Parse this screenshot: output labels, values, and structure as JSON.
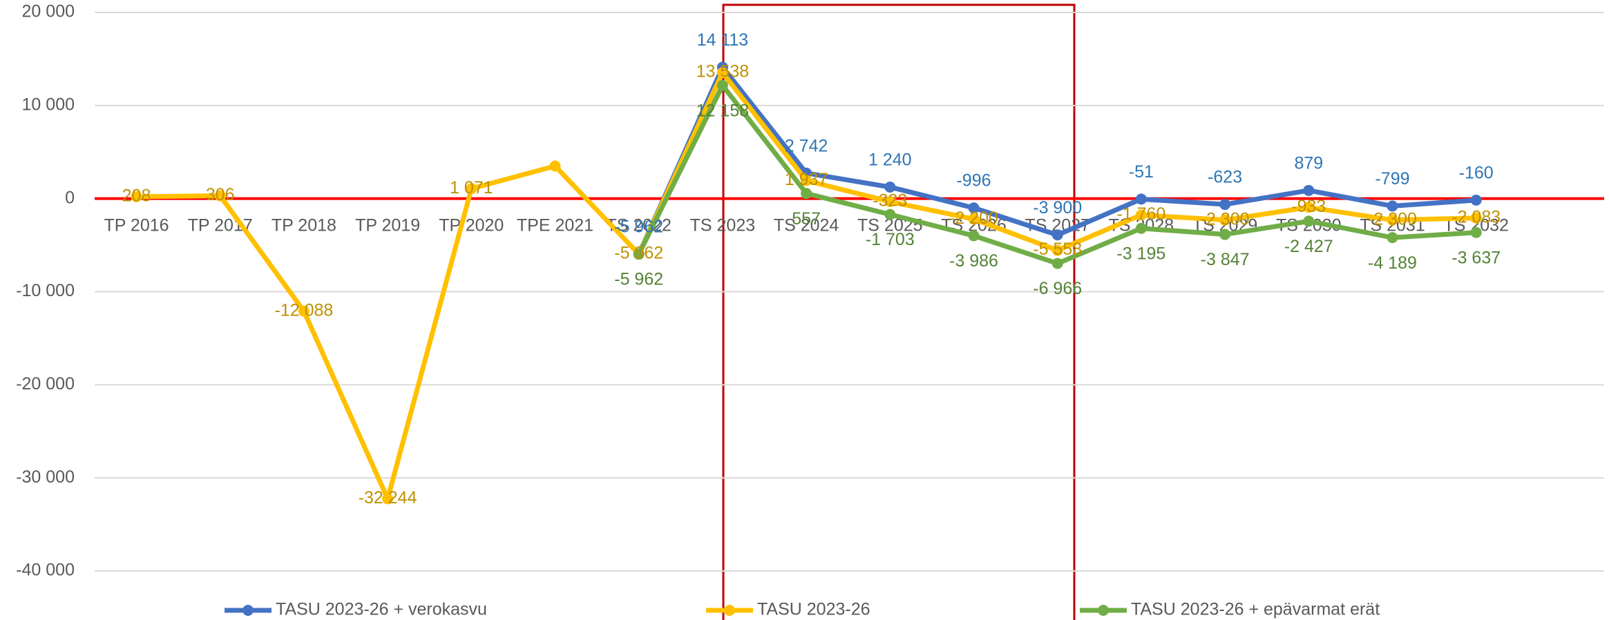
{
  "chart_data": {
    "type": "line",
    "categories": [
      "TP 2016",
      "TP 2017",
      "TP 2018",
      "TP 2019",
      "TP 2020",
      "TPE 2021",
      "TS 2022",
      "TS 2023",
      "TS 2024",
      "TS 2025",
      "TS 2026",
      "TS 2027",
      "TS 2028",
      "TS 2029",
      "TS 2030",
      "TS 2031",
      "TS 2032"
    ],
    "series": [
      {
        "name": "TASU 2023-26 + verokasvu",
        "color": "#4472c4",
        "label_color": "#2e75b6",
        "label_position": "above",
        "values": [
          null,
          null,
          null,
          null,
          null,
          null,
          -5962,
          14113,
          2742,
          1240,
          -996,
          -3900,
          -51,
          -623,
          879,
          -799,
          -160
        ],
        "value_labels": [
          null,
          null,
          null,
          null,
          null,
          null,
          "-5 962",
          "14 113",
          "2 742",
          "1 240",
          "-996",
          "-3 900",
          "-51",
          "-623",
          "879",
          "-799",
          "-160"
        ]
      },
      {
        "name": "TASU 2023-26",
        "color": "#ffc000",
        "label_color": "#bf9000",
        "label_position": "center",
        "values": [
          208,
          306,
          -12088,
          -32244,
          1071,
          3500,
          -5962,
          13538,
          1937,
          -323,
          -2200,
          -5558,
          -1760,
          -2300,
          -933,
          -2300,
          -2083
        ],
        "value_labels": [
          "208",
          "306",
          "-12 088",
          "-32 244",
          "1 071",
          null,
          "-5 962",
          "13 538",
          "1 937",
          "-323",
          "-2 200",
          "-5 558",
          "-1 760",
          "-2 300",
          "-933",
          "-2 300",
          "-2 083"
        ]
      },
      {
        "name": "TASU 2023-26 + epävarmat erät",
        "color": "#70ad47",
        "label_color": "#548235",
        "label_position": "below",
        "values": [
          null,
          null,
          null,
          null,
          null,
          null,
          -5962,
          12158,
          557,
          -1703,
          -3986,
          -6966,
          -3195,
          -3847,
          -2427,
          -4189,
          -3637
        ],
        "value_labels": [
          null,
          null,
          null,
          null,
          null,
          null,
          "-5 962",
          "12 158",
          "557",
          "-1 703",
          "-3 986",
          "-6 966",
          "-3 195",
          "-3 847",
          "-2 427",
          "-4 189",
          "-3 637"
        ]
      }
    ],
    "ylim": [
      -40000,
      20000
    ],
    "yticks": [
      {
        "value": -40000,
        "label": "-40 000"
      },
      {
        "value": -30000,
        "label": "-30 000"
      },
      {
        "value": -20000,
        "label": "-20 000"
      },
      {
        "value": -10000,
        "label": "-10 000"
      },
      {
        "value": 0,
        "label": "0"
      },
      {
        "value": 10000,
        "label": "10 000"
      },
      {
        "value": 20000,
        "label": "20 000"
      }
    ],
    "grid": true,
    "zero_line_color": "#ff0000",
    "legend": "bottom"
  }
}
